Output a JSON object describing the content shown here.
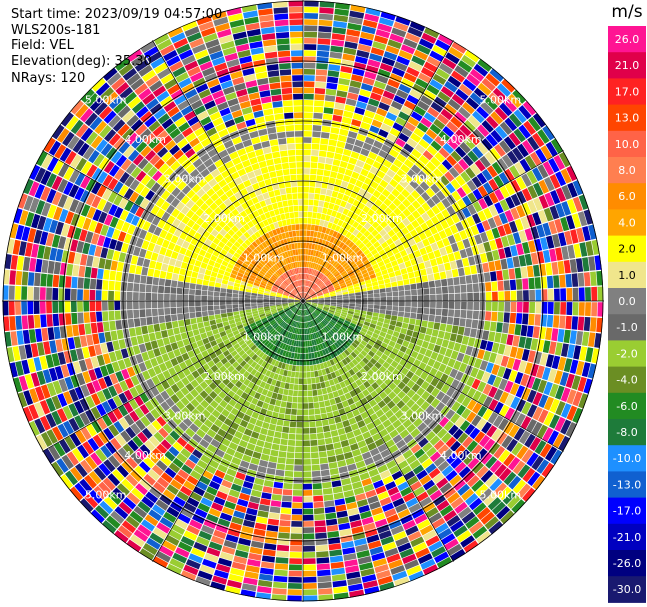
{
  "header": {
    "start_time": "Start time: 2023/09/19 04:57:00",
    "instrument": "WLS200s-181",
    "field": "Field: VEL",
    "elevation": "Elevation(deg): 35.30",
    "nrays": "NRays: 120"
  },
  "colorbar": {
    "unit": "m/s",
    "ticks": [
      "26.0",
      "21.0",
      "17.0",
      "13.0",
      "10.0",
      "8.0",
      "6.0",
      "4.0",
      "2.0",
      "1.0",
      "0.0",
      "-1.0",
      "-2.0",
      "-4.0",
      "-6.0",
      "-8.0",
      "-10.0",
      "-13.0",
      "-17.0",
      "-21.0",
      "-26.0",
      "-30.0"
    ],
    "colors": [
      "#ff1493",
      "#e0004a",
      "#ff2222",
      "#ff4500",
      "#ff6347",
      "#ff7f50",
      "#ff8c00",
      "#ffa500",
      "#ffff00",
      "#f0e68c",
      "#808080",
      "#696969",
      "#9acd32",
      "#6b8e23",
      "#228b22",
      "#1e7b3a",
      "#1e90ff",
      "#1060d0",
      "#0000ff",
      "#0000c0",
      "#000080",
      "#191970"
    ]
  },
  "range_rings": {
    "labels": [
      "1.00km",
      "2.00km",
      "3.00km",
      "4.00km",
      "5.00km"
    ]
  }
}
